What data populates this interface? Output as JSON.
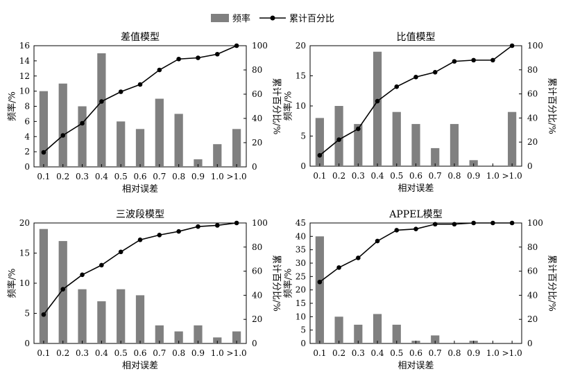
{
  "legend": {
    "bar_label": "频率",
    "line_label": "累计百分比",
    "bar_color": "#808080",
    "line_color": "#000000"
  },
  "chart_data": [
    {
      "type": "bar",
      "title": "差值模型",
      "xlabel": "相对误差",
      "ylabel": "频率/%",
      "y2label": "累计百分比/%",
      "categories": [
        "0.1",
        "0.2",
        "0.3",
        "0.4",
        "0.5",
        "0.6",
        "0.7",
        "0.8",
        "0.9",
        "1.0",
        ">1.0"
      ],
      "ylim": [
        0,
        16
      ],
      "yticks": [
        0,
        2,
        4,
        6,
        8,
        10,
        12,
        14,
        16
      ],
      "y2lim": [
        0,
        100
      ],
      "y2ticks": [
        0,
        20,
        40,
        60,
        80,
        100
      ],
      "series": [
        {
          "name": "频率",
          "type": "bar",
          "axis": "left",
          "values": [
            10,
            11,
            8,
            15,
            6,
            5,
            9,
            7,
            1,
            3,
            5
          ]
        },
        {
          "name": "累计百分比",
          "type": "line",
          "axis": "right",
          "values": [
            12,
            26,
            36,
            54,
            62,
            68,
            80,
            89,
            90,
            93,
            100
          ]
        }
      ],
      "grid": false,
      "legend_position": "top-center"
    },
    {
      "type": "bar",
      "title": "比值模型",
      "xlabel": "相对误差",
      "ylabel": "频率/%",
      "y2label": "累计百分比/%",
      "categories": [
        "0.1",
        "0.2",
        "0.3",
        "0.4",
        "0.5",
        "0.6",
        "0.7",
        "0.8",
        "0.9",
        "1.0",
        ">1.0"
      ],
      "ylim": [
        0,
        20
      ],
      "yticks": [
        0,
        5,
        10,
        15,
        20
      ],
      "y2lim": [
        0,
        100
      ],
      "y2ticks": [
        0,
        20,
        40,
        60,
        80,
        100
      ],
      "series": [
        {
          "name": "频率",
          "type": "bar",
          "axis": "left",
          "values": [
            8,
            10,
            7,
            19,
            9,
            7,
            3,
            7,
            1,
            0,
            9
          ]
        },
        {
          "name": "累计百分比",
          "type": "line",
          "axis": "right",
          "values": [
            9,
            22,
            31,
            54,
            66,
            74,
            78,
            87,
            88,
            88,
            100
          ]
        }
      ],
      "grid": false,
      "legend_position": "top-center"
    },
    {
      "type": "bar",
      "title": "三波段模型",
      "xlabel": "相对误差",
      "ylabel": "频率/%",
      "y2label": "累计百分比/%",
      "categories": [
        "0.1",
        "0.2",
        "0.3",
        "0.4",
        "0.5",
        "0.6",
        "0.7",
        "0.8",
        "0.9",
        "1.0",
        ">1.0"
      ],
      "ylim": [
        0,
        20
      ],
      "yticks": [
        0,
        5,
        10,
        15,
        20
      ],
      "y2lim": [
        0,
        100
      ],
      "y2ticks": [
        0,
        20,
        40,
        60,
        80,
        100
      ],
      "series": [
        {
          "name": "频率",
          "type": "bar",
          "axis": "left",
          "values": [
            19,
            17,
            9,
            7,
            9,
            8,
            3,
            2,
            3,
            1,
            2
          ]
        },
        {
          "name": "累计百分比",
          "type": "line",
          "axis": "right",
          "values": [
            24,
            45,
            57,
            65,
            76,
            86,
            90,
            93,
            97,
            98,
            100
          ]
        }
      ],
      "grid": false,
      "legend_position": "top-center"
    },
    {
      "type": "bar",
      "title": "APPEL模型",
      "xlabel": "相对误差",
      "ylabel": "频率/%",
      "y2label": "累计百分比/%",
      "categories": [
        "0.1",
        "0.2",
        "0.3",
        "0.4",
        "0.5",
        "0.6",
        "0.7",
        "0.8",
        "0.9",
        "1.0",
        ">1.0"
      ],
      "ylim": [
        0,
        45
      ],
      "yticks": [
        0,
        5,
        10,
        15,
        20,
        25,
        30,
        35,
        40,
        45
      ],
      "y2lim": [
        0,
        100
      ],
      "y2ticks": [
        0,
        20,
        40,
        60,
        80,
        100
      ],
      "series": [
        {
          "name": "频率",
          "type": "bar",
          "axis": "left",
          "values": [
            40,
            10,
            7,
            11,
            7,
            1,
            3,
            0,
            1,
            0,
            0
          ]
        },
        {
          "name": "累计百分比",
          "type": "line",
          "axis": "right",
          "values": [
            51,
            63,
            71,
            85,
            94,
            95,
            99,
            99,
            100,
            100,
            100
          ]
        }
      ],
      "grid": false,
      "legend_position": "top-center"
    }
  ]
}
